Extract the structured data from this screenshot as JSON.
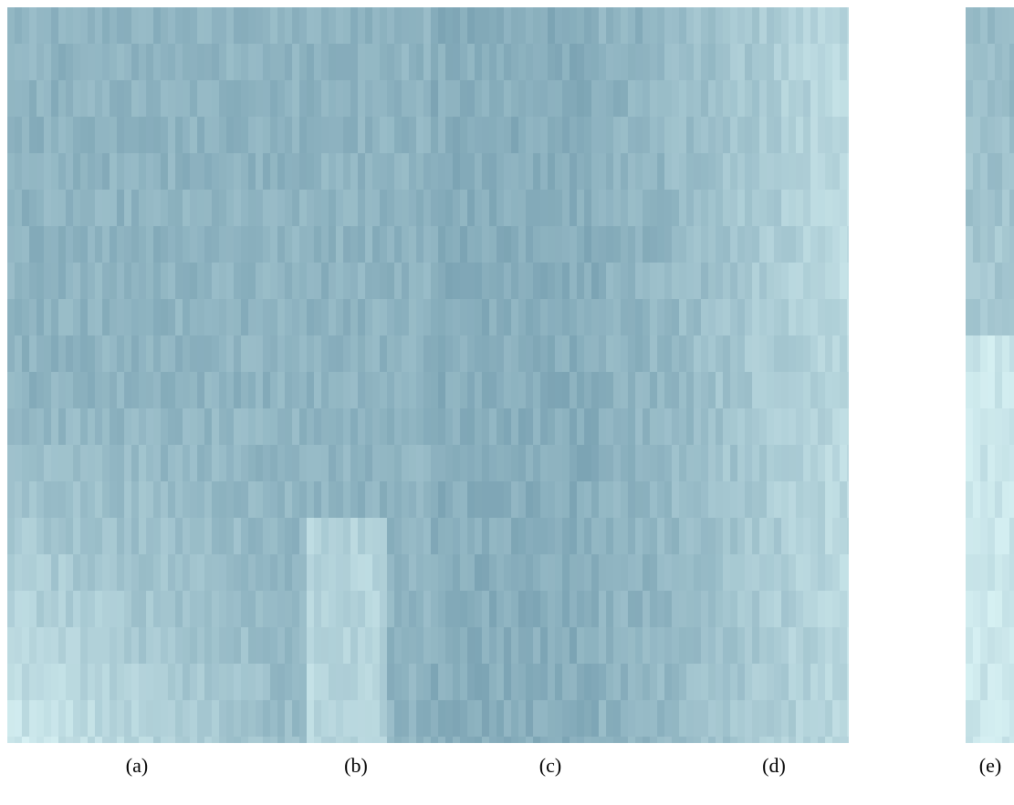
{
  "figure": {
    "labels": [
      "(a)",
      "(b)",
      "(c)",
      "(d)",
      "(e)"
    ]
  }
}
